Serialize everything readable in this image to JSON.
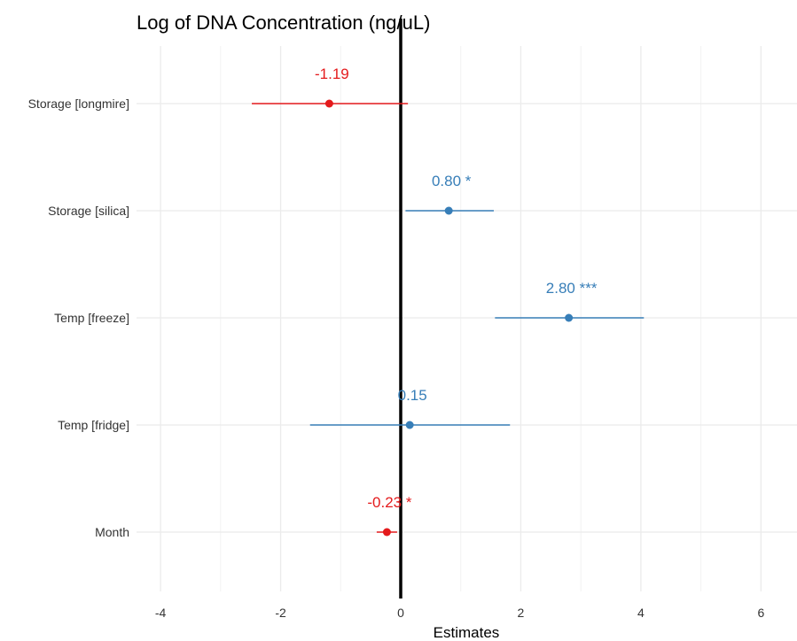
{
  "chart_data": {
    "type": "forest",
    "title": "Log of DNA Concentration (ng/uL)",
    "xlabel": "Estimates",
    "ylabel": "",
    "xlim": [
      -4.4,
      6.6
    ],
    "xticks": [
      -4,
      -2,
      0,
      2,
      4,
      6
    ],
    "grid": true,
    "legend": "none",
    "colors": {
      "negative": "#e41a1c",
      "positive": "#377eb8",
      "zero_line": "#000000",
      "grid": "#ebebeb"
    },
    "terms": [
      {
        "label": "Storage [longmire]",
        "estimate": -1.19,
        "ci": [
          -2.48,
          0.12
        ],
        "label_text": "-1.19"
      },
      {
        "label": "Storage [silica]",
        "estimate": 0.8,
        "ci": [
          0.08,
          1.55
        ],
        "label_text": "0.80 *"
      },
      {
        "label": "Temp [freeze]",
        "estimate": 2.8,
        "ci": [
          1.57,
          4.05
        ],
        "label_text": "2.80 ***"
      },
      {
        "label": "Temp [fridge]",
        "estimate": 0.15,
        "ci": [
          -1.51,
          1.82
        ],
        "label_text": "0.15"
      },
      {
        "label": "Month",
        "estimate": -0.23,
        "ci": [
          -0.4,
          -0.06
        ],
        "label_text": "-0.23 *"
      }
    ]
  }
}
